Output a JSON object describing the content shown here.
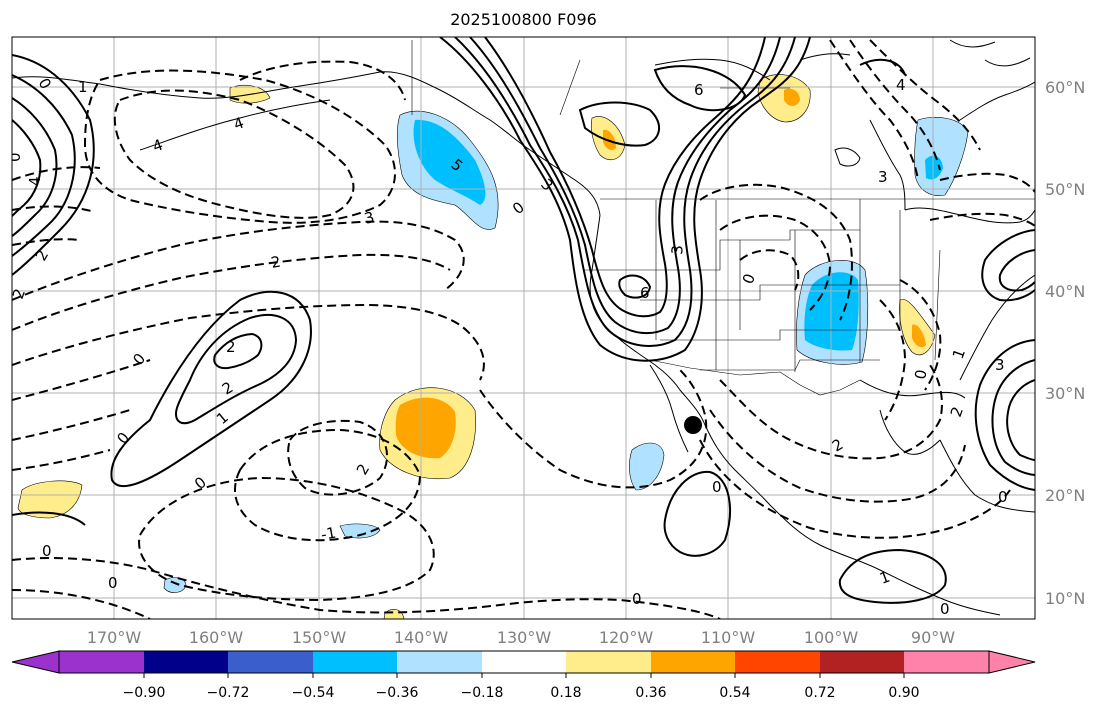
{
  "title": "2025100800 F096",
  "map": {
    "lon_labels": [
      "170°W",
      "160°W",
      "150°W",
      "140°W",
      "130°W",
      "120°W",
      "110°W",
      "100°W",
      "90°W"
    ],
    "lat_labels": [
      "60°N",
      "50°N",
      "40°N",
      "30°N",
      "20°N",
      "10°N"
    ],
    "contour_labels": [
      "0",
      "1",
      "2",
      "3",
      "4",
      "5",
      "6",
      "-1",
      "-2",
      "-3"
    ],
    "marker": "storm-center-dot"
  },
  "colorbar": {
    "tick_labels": [
      "−0.90",
      "−0.72",
      "−0.54",
      "−0.36",
      "−0.18",
      "0.18",
      "0.36",
      "0.54",
      "0.72",
      "0.90"
    ],
    "colors": [
      "#9b32cd",
      "#00008b",
      "#3a5fcd",
      "#00bfff",
      "#b0e2ff",
      "#ffffff",
      "#ffec8b",
      "#ffa500",
      "#ff4500",
      "#b22222",
      "#ff82ab"
    ]
  },
  "labels": {
    "c0": "0",
    "c1": "1",
    "c2": "2",
    "c3": "3",
    "c4": "4",
    "c5": "5",
    "c6": "6",
    "cm1": "-1",
    "cm2": "-2",
    "cm3": "-3"
  }
}
